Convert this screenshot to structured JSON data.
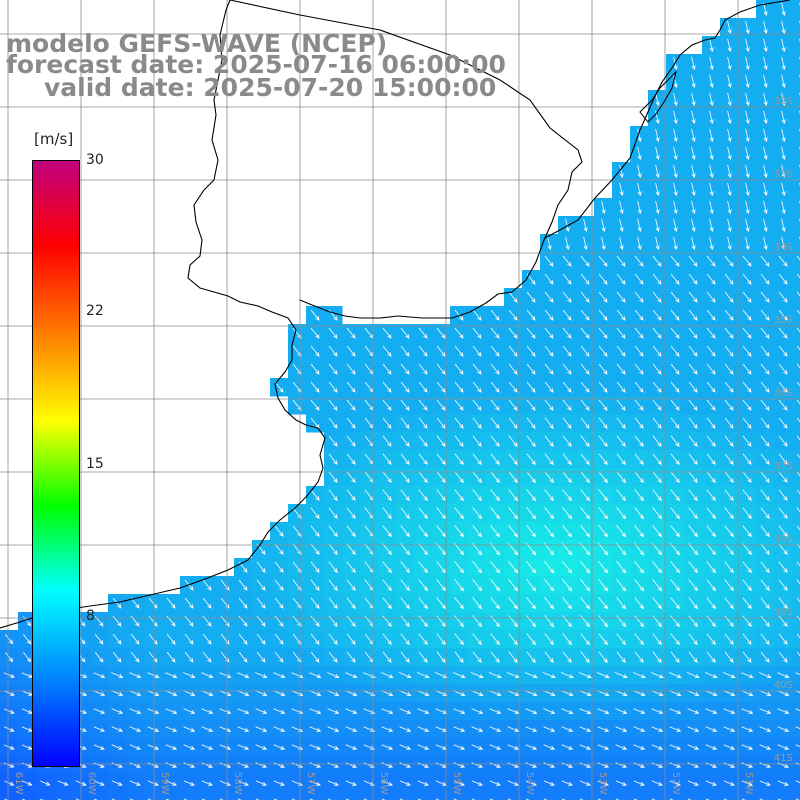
{
  "title": {
    "line1": "modelo GEFS-WAVE (NCEP)",
    "line2": "forecast date: 2025-07-16 06:00:00",
    "line3": "valid date: 2025-07-20 15:00:00"
  },
  "colorbar": {
    "unit": "[m/s]",
    "ticks": [
      "30",
      "22",
      "15",
      "8"
    ],
    "tick_values": [
      30,
      22,
      15,
      8
    ],
    "range": [
      0,
      30
    ],
    "stops": [
      "#0000ff",
      "#0080ff",
      "#00ffff",
      "#00ff00",
      "#ffff00",
      "#ff8000",
      "#ff0000",
      "#c0007f"
    ]
  },
  "latitude_labels": [
    "32S",
    "33S",
    "34S",
    "35S",
    "36S",
    "37S",
    "38S",
    "39S",
    "40S",
    "41S"
  ],
  "longitude_labels": [
    "61W",
    "60W",
    "59W",
    "58W",
    "57W",
    "56W",
    "55W",
    "54W",
    "53W",
    "52W",
    "51W"
  ],
  "colors": {
    "land": "#ffffff",
    "coast": "#000000",
    "grid": "#8c8c8c",
    "arrow": "#ffffff",
    "label": "#9a9a9a"
  }
}
